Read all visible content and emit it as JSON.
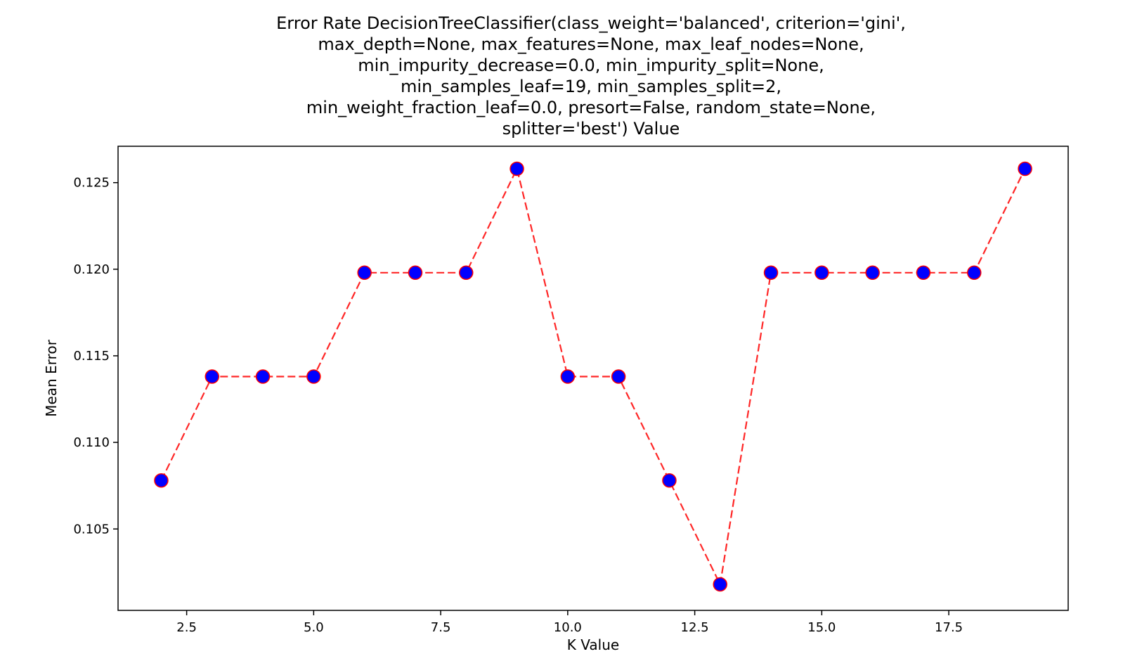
{
  "chart_data": {
    "type": "line",
    "title_lines": [
      "Error Rate DecisionTreeClassifier(class_weight='balanced', criterion='gini',",
      "max_depth=None, max_features=None, max_leaf_nodes=None,",
      "min_impurity_decrease=0.0, min_impurity_split=None,",
      "min_samples_leaf=19, min_samples_split=2,",
      "min_weight_fraction_leaf=0.0, presort=False, random_state=None,",
      "splitter='best') Value"
    ],
    "xlabel": "K Value",
    "ylabel": "Mean Error",
    "xlim": [
      1.15,
      19.85
    ],
    "ylim": [
      0.1003,
      0.1271
    ],
    "x_ticks": [
      2.5,
      5.0,
      7.5,
      10.0,
      12.5,
      15.0,
      17.5
    ],
    "x_tick_labels": [
      "2.5",
      "5.0",
      "7.5",
      "10.0",
      "12.5",
      "15.0",
      "17.5"
    ],
    "y_ticks": [
      0.105,
      0.11,
      0.115,
      0.12,
      0.125
    ],
    "y_tick_labels": [
      "0.105",
      "0.110",
      "0.115",
      "0.120",
      "0.125"
    ],
    "grid": false,
    "series": [
      {
        "x": [
          2,
          3,
          4,
          5,
          6,
          7,
          8,
          9,
          10,
          11,
          12,
          13,
          14,
          15,
          16,
          17,
          18,
          19
        ],
        "y": [
          0.1078,
          0.1138,
          0.1138,
          0.1138,
          0.1198,
          0.1198,
          0.1198,
          0.1258,
          0.1138,
          0.1138,
          0.1078,
          0.1018,
          0.1198,
          0.1198,
          0.1198,
          0.1198,
          0.1198,
          0.1258
        ],
        "line_color": "#ff0000",
        "line_style": "dashed",
        "marker_face_color": "#0000ff",
        "marker_edge_color": "#ff0000"
      }
    ]
  }
}
